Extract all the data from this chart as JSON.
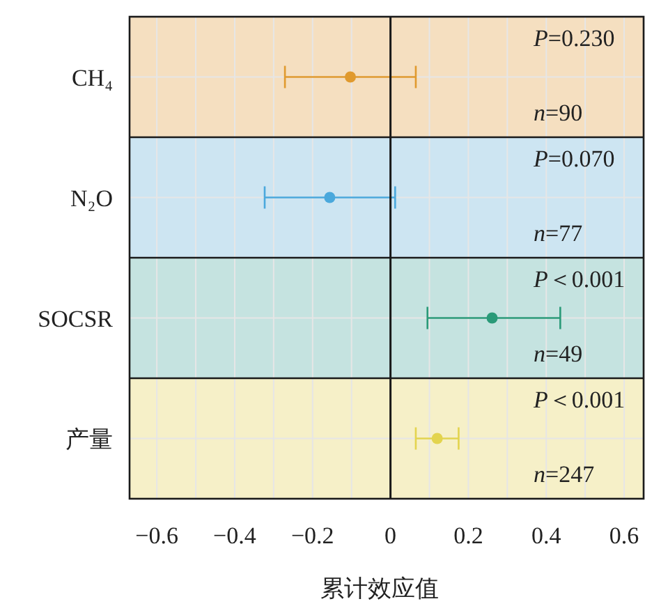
{
  "chart_data": {
    "type": "scatter",
    "orientation": "horizontal",
    "xlabel": "累计效应值",
    "categories": [
      "CH₄",
      "N₂O",
      "SOCSR",
      "产量"
    ],
    "values": [
      -0.103,
      -0.156,
      0.261,
      0.12
    ],
    "errors": [
      [
        -0.271,
        0.065
      ],
      [
        -0.323,
        0.012
      ],
      [
        0.095,
        0.436
      ],
      [
        0.065,
        0.175
      ]
    ],
    "colors": [
      "#e09a2e",
      "#4aa8dc",
      "#2a9a78",
      "#e3d44e"
    ],
    "marker": "circle",
    "xlim": [
      -0.67,
      0.65
    ],
    "xticks": [
      -0.6,
      {
        "value": -0.5,
        "label": null
      },
      -0.4,
      {
        "value": -0.3,
        "label": null
      },
      -0.2,
      {
        "value": -0.1,
        "label": null
      },
      0,
      {
        "value": 0.1,
        "label": null
      },
      0.2,
      {
        "value": 0.3,
        "label": null
      },
      0.4,
      {
        "value": 0.5,
        "label": null
      },
      0.6
    ],
    "grid": true,
    "ref_lines": [
      {
        "axis": "x",
        "value": 0,
        "color": "#1a1a1a"
      }
    ],
    "bands": [
      {
        "axis": "y",
        "from": "CH₄",
        "to": "CH₄",
        "color": "#f5dfc0"
      },
      {
        "axis": "y",
        "from": "N₂O",
        "to": "N₂O",
        "color": "#cde5f2"
      },
      {
        "axis": "y",
        "from": "SOCSR",
        "to": "SOCSR",
        "color": "#c5e3e0"
      },
      {
        "axis": "y",
        "from": "产量",
        "to": "产量",
        "color": "#f6f0c8"
      }
    ],
    "annotations": [
      "P=0.230",
      "n=90",
      "P=0.070",
      "n=77",
      "P＜0.001",
      "n=49",
      "P＜0.001",
      "n=247"
    ]
  }
}
